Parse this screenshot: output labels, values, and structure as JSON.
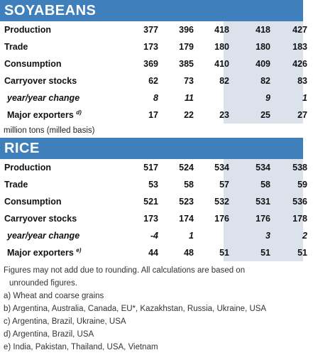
{
  "soybeans": {
    "title": "SOYABEANS",
    "rows": [
      {
        "label": "Production",
        "values": [
          "377",
          "396",
          "418",
          "418",
          "427"
        ]
      },
      {
        "label": "Trade",
        "values": [
          "173",
          "179",
          "180",
          "180",
          "183"
        ]
      },
      {
        "label": "Consumption",
        "values": [
          "369",
          "385",
          "410",
          "409",
          "426"
        ]
      },
      {
        "label": "Carryover stocks",
        "values": [
          "62",
          "73",
          "82",
          "82",
          "83"
        ]
      },
      {
        "label": "year/year change",
        "values": [
          "8",
          "11",
          "",
          "9",
          "1"
        ]
      },
      {
        "label": "Major exporters",
        "sup": "d)",
        "values": [
          "17",
          "22",
          "23",
          "25",
          "27"
        ]
      }
    ]
  },
  "unit_note": "million tons (milled basis)",
  "rice": {
    "title": "RICE",
    "rows": [
      {
        "label": "Production",
        "values": [
          "517",
          "524",
          "534",
          "534",
          "538"
        ]
      },
      {
        "label": "Trade",
        "values": [
          "53",
          "58",
          "57",
          "58",
          "59"
        ]
      },
      {
        "label": "Consumption",
        "values": [
          "521",
          "523",
          "532",
          "531",
          "536"
        ]
      },
      {
        "label": "Carryover stocks",
        "values": [
          "173",
          "174",
          "176",
          "176",
          "178"
        ]
      },
      {
        "label": "year/year change",
        "values": [
          "-4",
          "1",
          "",
          "3",
          "2"
        ]
      },
      {
        "label": "Major exporters",
        "sup": "e)",
        "values": [
          "44",
          "48",
          "51",
          "51",
          "51"
        ]
      }
    ]
  },
  "footnotes": {
    "rounding_line1": "Figures may not add due to rounding. All calculations are based on",
    "rounding_line2": "unrounded figures.",
    "a": "a) Wheat and coarse grains",
    "b": "b) Argentina, Australia, Canada, EU*, Kazakhstan, Russia, Ukraine, USA",
    "c": "c) Argentina, Brazil, Ukraine, USA",
    "d": "d) Argentina, Brazil, USA",
    "e": "e) India, Pakistan, Thailand, USA, Vietnam"
  },
  "colors": {
    "header_bg": "#3f7fbc",
    "shade_bg": "#dbe2ec"
  }
}
